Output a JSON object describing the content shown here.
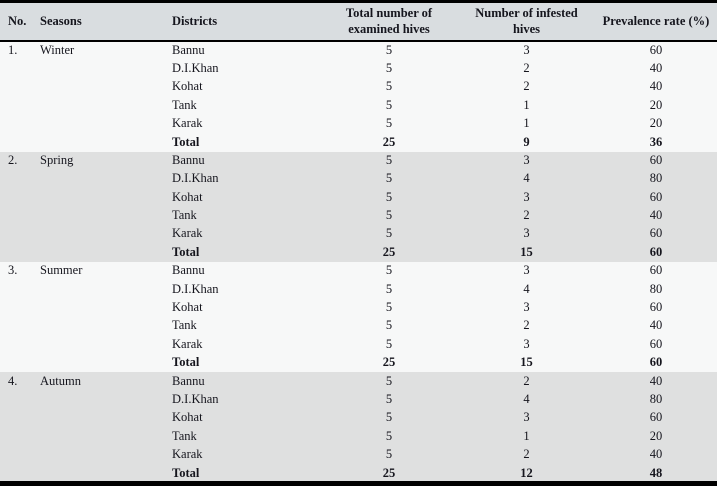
{
  "colors": {
    "header_bg": "#d9dde0",
    "shaded_bg": "#dfe0e0",
    "page_bg": "#f7f8f8",
    "border": "#000000",
    "text": "#15151d"
  },
  "table": {
    "columns": {
      "no": "No.",
      "seasons": "Seasons",
      "districts": "Districts",
      "examined": "Total number of examined hives",
      "infested": "Number of infested hives",
      "prevalence": "Prevalence rate (%)"
    },
    "sections": [
      {
        "no": "1.",
        "season": "Winter",
        "rows": [
          {
            "district": "Bannu",
            "examined": "5",
            "infested": "3",
            "prevalence": "60"
          },
          {
            "district": "D.I.Khan",
            "examined": "5",
            "infested": "2",
            "prevalence": "40"
          },
          {
            "district": "Kohat",
            "examined": "5",
            "infested": "2",
            "prevalence": "40"
          },
          {
            "district": "Tank",
            "examined": "5",
            "infested": "1",
            "prevalence": "20"
          },
          {
            "district": "Karak",
            "examined": "5",
            "infested": "1",
            "prevalence": "20"
          }
        ],
        "total": {
          "label": "Total",
          "examined": "25",
          "infested": "9",
          "prevalence": "36"
        }
      },
      {
        "no": "2.",
        "season": "Spring",
        "rows": [
          {
            "district": "Bannu",
            "examined": "5",
            "infested": "3",
            "prevalence": "60"
          },
          {
            "district": "D.I.Khan",
            "examined": "5",
            "infested": "4",
            "prevalence": "80"
          },
          {
            "district": "Kohat",
            "examined": "5",
            "infested": "3",
            "prevalence": "60"
          },
          {
            "district": "Tank",
            "examined": "5",
            "infested": "2",
            "prevalence": "40"
          },
          {
            "district": "Karak",
            "examined": "5",
            "infested": "3",
            "prevalence": "60"
          }
        ],
        "total": {
          "label": "Total",
          "examined": "25",
          "infested": "15",
          "prevalence": "60"
        }
      },
      {
        "no": "3.",
        "season": "Summer",
        "rows": [
          {
            "district": "Bannu",
            "examined": "5",
            "infested": "3",
            "prevalence": "60"
          },
          {
            "district": "D.I.Khan",
            "examined": "5",
            "infested": "4",
            "prevalence": "80"
          },
          {
            "district": "Kohat",
            "examined": "5",
            "infested": "3",
            "prevalence": "60"
          },
          {
            "district": "Tank",
            "examined": "5",
            "infested": "2",
            "prevalence": "40"
          },
          {
            "district": "Karak",
            "examined": "5",
            "infested": "3",
            "prevalence": "60"
          }
        ],
        "total": {
          "label": "Total",
          "examined": "25",
          "infested": "15",
          "prevalence": "60"
        }
      },
      {
        "no": "4.",
        "season": "Autumn",
        "rows": [
          {
            "district": "Bannu",
            "examined": "5",
            "infested": "2",
            "prevalence": "40"
          },
          {
            "district": "D.I.Khan",
            "examined": "5",
            "infested": "4",
            "prevalence": "80"
          },
          {
            "district": "Kohat",
            "examined": "5",
            "infested": "3",
            "prevalence": "60"
          },
          {
            "district": "Tank",
            "examined": "5",
            "infested": "1",
            "prevalence": "20"
          },
          {
            "district": "Karak",
            "examined": "5",
            "infested": "2",
            "prevalence": "40"
          }
        ],
        "total": {
          "label": "Total",
          "examined": "25",
          "infested": "12",
          "prevalence": "48"
        }
      }
    ]
  }
}
